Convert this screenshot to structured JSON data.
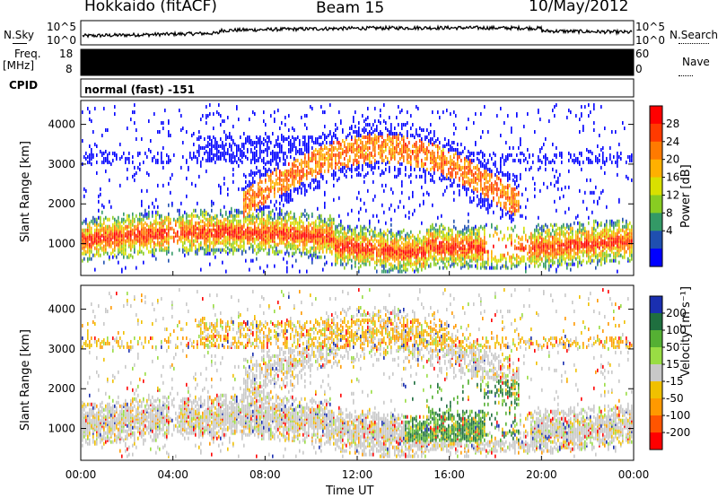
{
  "header": {
    "station": "Hokkaido (fitACF)",
    "beam": "Beam 15",
    "date": "10/May/2012"
  },
  "noise_panel": {
    "left_label": "N.Sky",
    "right_label": "N.Search",
    "left_ticks": [
      "10^5",
      "10^0"
    ],
    "right_ticks": [
      "10^5",
      "10^0"
    ]
  },
  "freq_panel": {
    "left_label_1": "Freq.",
    "left_label_2": "[MHz]",
    "left_ticks": [
      "18",
      "8"
    ],
    "right_ticks": [
      "60",
      "0"
    ],
    "right_label": "Nave"
  },
  "cpid": {
    "label": "CPID",
    "mode": "normal (fast) -151"
  },
  "chart_data": [
    {
      "type": "heatmap",
      "name": "power",
      "ylabel": "Slant Range [km]",
      "xlabel": "",
      "yticks": [
        "1000",
        "2000",
        "3000",
        "4000"
      ],
      "ylim": [
        200,
        4600
      ],
      "colorbar_label": "Power [dB]",
      "colorbar_ticks": [
        "28",
        "24",
        "20",
        "16",
        "12",
        "8",
        "4"
      ],
      "colorbar_colors": [
        "#ff0000",
        "#ff3a00",
        "#ff7a00",
        "#ffb000",
        "#d9e000",
        "#88cc22",
        "#339966",
        "#1f4fb0",
        "#0000ff"
      ],
      "features": [
        {
          "desc": "E region band",
          "range_km": [
            600,
            1500
          ],
          "hours": [
            0,
            24
          ]
        },
        {
          "desc": "F region arc",
          "range_km": [
            1800,
            3800
          ],
          "hours": [
            8,
            19
          ]
        }
      ]
    },
    {
      "type": "heatmap",
      "name": "velocity",
      "ylabel": "Slant Range [km]",
      "xlabel": "Time UT",
      "xticks": [
        "00:00",
        "04:00",
        "08:00",
        "12:00",
        "16:00",
        "20:00",
        "00:00"
      ],
      "yticks": [
        "1000",
        "2000",
        "3000",
        "4000"
      ],
      "ylim": [
        200,
        4600
      ],
      "colorbar_label": "Velocity [m s⁻¹]",
      "colorbar_ticks": [
        "200",
        "100",
        "50",
        "15",
        "-15",
        "-50",
        "-100",
        "-200"
      ],
      "colorbar_colors": [
        "#1a2fb0",
        "#1f6f3f",
        "#55b033",
        "#99dd44",
        "#c8c8c8",
        "#f0c000",
        "#ff9900",
        "#ff5500",
        "#ff0000"
      ]
    }
  ]
}
